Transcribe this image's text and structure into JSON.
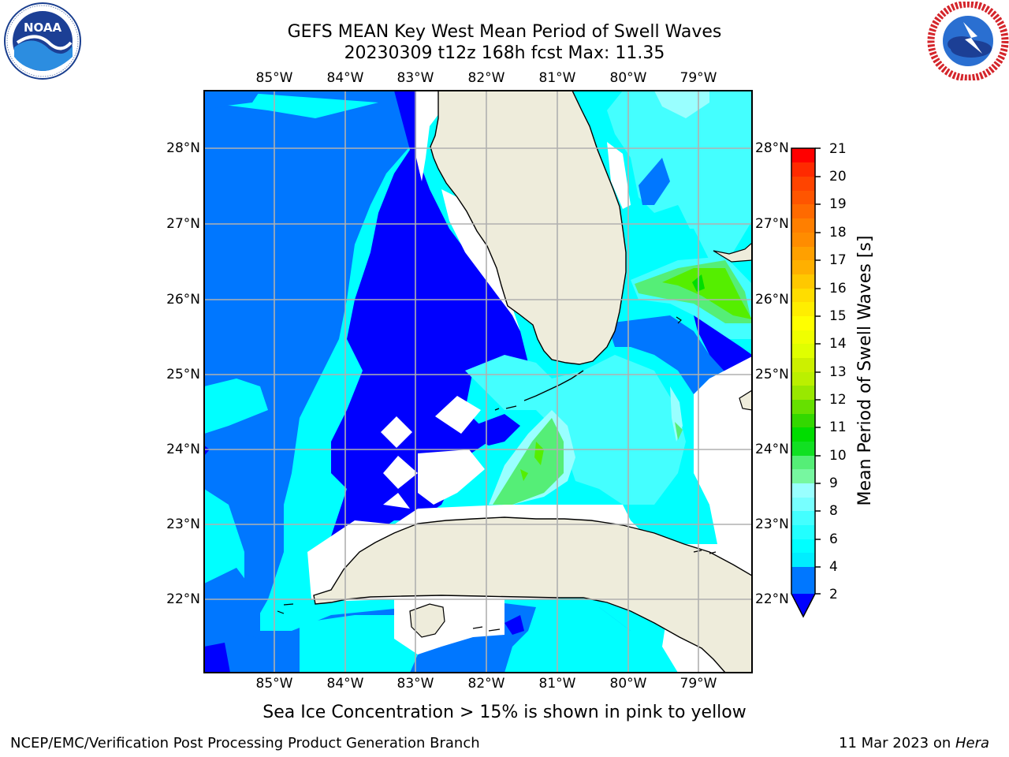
{
  "title": {
    "line1": "GEFS MEAN Key West Mean Period of Swell Waves",
    "line2": "20230309 t12z 168h fcst   Max: 11.35"
  },
  "logos": {
    "left": {
      "icon": "noaa-logo-icon",
      "text": "NOAA",
      "ring_text": "NATIONAL OCEANIC AND ATMOSPHERIC ADMINISTRATION · U.S. DEPARTMENT OF COMMERCE"
    },
    "right": {
      "icon": "nws-logo-icon",
      "ring_text": "NATIONAL WEATHER SERVICE"
    }
  },
  "map": {
    "lon_labels": [
      "85°W",
      "84°W",
      "83°W",
      "82°W",
      "81°W",
      "80°W",
      "79°W"
    ],
    "lat_labels": [
      "28°N",
      "27°N",
      "26°N",
      "25°N",
      "24°N",
      "23°N",
      "22°N"
    ],
    "grid": true,
    "colors": {
      "land": "#eeecdb",
      "no_data": "#ffffff",
      "grid": "#b0b0b0",
      "coast": "#000000"
    }
  },
  "colorbar": {
    "label": "Mean Period of Swell Waves [s]",
    "ticks": [
      "21",
      "20",
      "19",
      "18",
      "17",
      "16",
      "15",
      "14",
      "13",
      "12",
      "11",
      "10",
      "9",
      "8",
      "6",
      "4",
      "2"
    ],
    "colors": [
      "#ff0000",
      "#ff2a00",
      "#ff5500",
      "#ff8000",
      "#ffaa00",
      "#ffd500",
      "#ffff00",
      "#eaff00",
      "#d4ff00",
      "#aaff00",
      "#55ee00",
      "#00dd00",
      "#55ee77",
      "#99ffff",
      "#44ffff",
      "#00ffff",
      "#0077ff",
      "#0000ff"
    ]
  },
  "note": "Sea Ice Concentration > 15% is shown in pink to yellow",
  "footer": {
    "left": "NCEP/EMC/Verification Post Processing Product Generation Branch",
    "right_prefix": "11 Mar 2023 on ",
    "right_host": "Hera"
  }
}
